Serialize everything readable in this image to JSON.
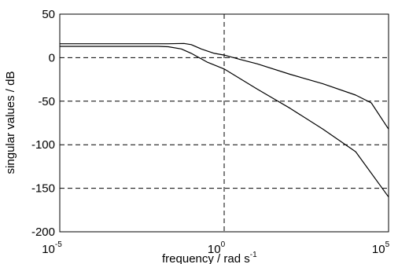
{
  "chart_data": {
    "type": "line",
    "xlabel_main": "frequency / rad s",
    "xlabel_sup": "-1",
    "ylabel": "singular values / dB",
    "x_scale": "log",
    "xlim": [
      1e-05,
      100000
    ],
    "ylim": [
      -200,
      50
    ],
    "grid": "dashed",
    "y_ticks": [
      {
        "value": 50,
        "label": "50"
      },
      {
        "value": 0,
        "label": "0"
      },
      {
        "value": -50,
        "label": "-50"
      },
      {
        "value": -100,
        "label": "-100"
      },
      {
        "value": -150,
        "label": "-150"
      },
      {
        "value": -200,
        "label": "-200"
      }
    ],
    "x_ticks": [
      {
        "value": 1e-05,
        "base": "10",
        "exp": "-5"
      },
      {
        "value": 1,
        "base": "10",
        "exp": "0"
      },
      {
        "value": 100000,
        "base": "10",
        "exp": "5"
      }
    ],
    "series": [
      {
        "values": [
          [
            1e-05,
            16
          ],
          [
            0.001,
            16
          ],
          [
            0.02,
            16
          ],
          [
            0.06,
            16.3
          ],
          [
            0.1,
            15
          ],
          [
            0.2,
            10
          ],
          [
            0.5,
            5
          ],
          [
            1,
            3
          ],
          [
            3,
            -2
          ],
          [
            10,
            -7
          ],
          [
            100,
            -19
          ],
          [
            1000,
            -30
          ],
          [
            10000,
            -43
          ],
          [
            30000,
            -52
          ],
          [
            100000,
            -82
          ]
        ]
      },
      {
        "values": [
          [
            1e-05,
            13
          ],
          [
            0.001,
            13
          ],
          [
            0.01,
            13
          ],
          [
            0.02,
            12.5
          ],
          [
            0.05,
            10
          ],
          [
            0.1,
            5
          ],
          [
            0.3,
            -5
          ],
          [
            1,
            -13
          ],
          [
            10,
            -36
          ],
          [
            100,
            -58
          ],
          [
            1000,
            -82
          ],
          [
            10000,
            -108
          ],
          [
            100000,
            -160
          ]
        ]
      }
    ]
  }
}
